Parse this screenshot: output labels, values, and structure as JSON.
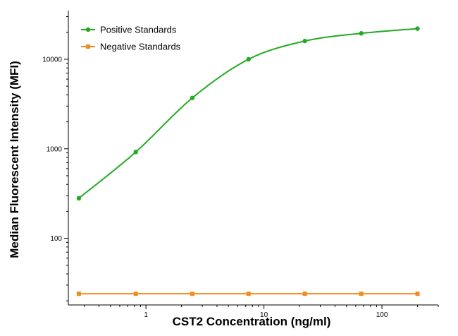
{
  "chart_data": {
    "type": "line",
    "xlabel": "CST2 Concentration (ng/ml)",
    "ylabel": "Median Fluorescent Intensity (MFI)",
    "xscale": "log",
    "yscale": "log",
    "xlim": [
      0.22,
      300
    ],
    "ylim": [
      18,
      35000
    ],
    "x_ticks": [
      1,
      10,
      100
    ],
    "x_tick_labels": [
      "1",
      "10",
      "100"
    ],
    "y_ticks": [
      100,
      1000,
      10000
    ],
    "y_tick_labels": [
      "100",
      "1000",
      "10000"
    ],
    "grid": false,
    "legend_position": "top-left",
    "series": [
      {
        "name": "Positive Standards",
        "color": "#22aa22",
        "marker": "circle",
        "curve": "fitted",
        "x": [
          0.27,
          0.82,
          2.47,
          7.4,
          22.2,
          66.7,
          200
        ],
        "y": [
          280,
          920,
          3700,
          10000,
          16000,
          19500,
          22000
        ]
      },
      {
        "name": "Negative Standards",
        "color": "#f08c1e",
        "marker": "square",
        "curve": "line",
        "x": [
          0.27,
          0.82,
          2.47,
          7.4,
          22.2,
          66.7,
          200
        ],
        "y": [
          24,
          24,
          24,
          24,
          24,
          24,
          24
        ]
      }
    ]
  }
}
